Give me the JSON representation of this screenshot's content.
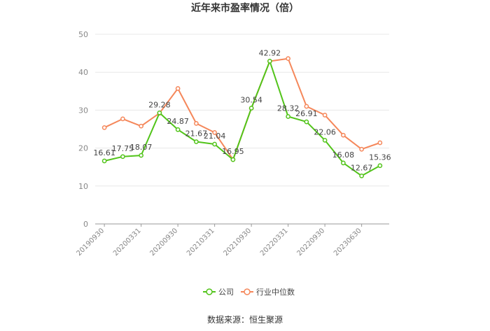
{
  "chart_data": {
    "type": "line",
    "title": "近年来市盈率情况（倍）",
    "source": "数据来源：恒生聚源",
    "ylim": [
      0,
      50
    ],
    "yticks": [
      0,
      10,
      20,
      30,
      40,
      50
    ],
    "x_tick_labels": [
      "20190930",
      "20200331",
      "20200930",
      "20210331",
      "20210930",
      "20220331",
      "20220930",
      "20230630"
    ],
    "x_tick_indices": [
      0,
      2,
      4,
      6,
      8,
      10,
      12,
      14
    ],
    "num_points": 16,
    "grid": true,
    "legend_position": "bottom",
    "series": [
      {
        "name": "公司",
        "color": "#52c41a",
        "values": [
          16.61,
          17.75,
          18.07,
          29.28,
          24.87,
          21.67,
          21.04,
          16.95,
          30.54,
          42.92,
          28.32,
          26.91,
          22.06,
          16.08,
          12.67,
          15.36
        ],
        "labels": [
          "16.61",
          "17.75",
          "18.07",
          "29.28",
          "24.87",
          "21.67",
          "21.04",
          "16.95",
          "30.54",
          "42.92",
          "28.32",
          "26.91",
          "22.06",
          "16.08",
          "12.67",
          "15.36"
        ]
      },
      {
        "name": "行业中位数",
        "color": "#f5875a",
        "values": [
          25.4,
          27.7,
          25.8,
          29.2,
          35.7,
          26.5,
          24.1,
          17.0,
          30.5,
          42.9,
          43.6,
          31.0,
          28.7,
          23.4,
          19.7,
          21.4
        ]
      }
    ]
  }
}
